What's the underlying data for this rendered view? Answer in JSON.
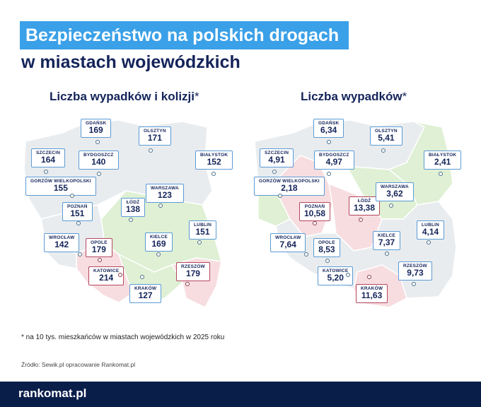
{
  "title": "Bezpieczeństwo na polskich drogach",
  "subtitle": "w miastach wojewódzkich",
  "maps": [
    {
      "title": "Liczba wypadków i kolizji",
      "star": "*",
      "cities": [
        {
          "name": "GDAŃSK",
          "value": "169",
          "highlight": false
        },
        {
          "name": "OLSZTYN",
          "value": "171",
          "highlight": false
        },
        {
          "name": "SZCZECIN",
          "value": "164",
          "highlight": false
        },
        {
          "name": "BYDGOSZCZ",
          "value": "140",
          "highlight": false
        },
        {
          "name": "BIAŁYSTOK",
          "value": "152",
          "highlight": false
        },
        {
          "name": "GORZÓW WIELKOPOLSKI",
          "value": "155",
          "highlight": false
        },
        {
          "name": "WARSZAWA",
          "value": "123",
          "highlight": false
        },
        {
          "name": "ŁÓDŹ",
          "value": "138",
          "highlight": false
        },
        {
          "name": "POZNAŃ",
          "value": "151",
          "highlight": false
        },
        {
          "name": "LUBLIN",
          "value": "151",
          "highlight": false
        },
        {
          "name": "WROCŁAW",
          "value": "142",
          "highlight": false
        },
        {
          "name": "OPOLE",
          "value": "179",
          "highlight": true
        },
        {
          "name": "KIELCE",
          "value": "169",
          "highlight": false
        },
        {
          "name": "RZESZÓW",
          "value": "179",
          "highlight": true
        },
        {
          "name": "KATOWICE",
          "value": "214",
          "highlight": true
        },
        {
          "name": "KRAKÓW",
          "value": "127",
          "highlight": false
        }
      ]
    },
    {
      "title": "Liczba wypadków",
      "star": "*",
      "cities": [
        {
          "name": "GDAŃSK",
          "value": "6,34",
          "highlight": false
        },
        {
          "name": "OLSZTYN",
          "value": "5,41",
          "highlight": false
        },
        {
          "name": "SZCZECIN",
          "value": "4,91",
          "highlight": false
        },
        {
          "name": "BYDGOSZCZ",
          "value": "4,97",
          "highlight": false
        },
        {
          "name": "BIAŁYSTOK",
          "value": "2,41",
          "highlight": false
        },
        {
          "name": "GORZÓW WIELKOPOLSKI",
          "value": "2,18",
          "highlight": false
        },
        {
          "name": "ŁÓDŹ",
          "value": "13,38",
          "highlight": true
        },
        {
          "name": "WARSZAWA",
          "value": "3,62",
          "highlight": false
        },
        {
          "name": "POZNAŃ",
          "value": "10,58",
          "highlight": true
        },
        {
          "name": "LUBLIN",
          "value": "4,14",
          "highlight": false
        },
        {
          "name": "WROCŁAW",
          "value": "7,64",
          "highlight": false
        },
        {
          "name": "KIELCE",
          "value": "7,37",
          "highlight": false
        },
        {
          "name": "OPOLE",
          "value": "8,53",
          "highlight": false
        },
        {
          "name": "RZESZÓW",
          "value": "9,73",
          "highlight": false
        },
        {
          "name": "KATOWICE",
          "value": "5,20",
          "highlight": false
        },
        {
          "name": "KRAKÓW",
          "value": "11,63",
          "highlight": true
        }
      ]
    }
  ],
  "footnote": "* na 10 tys. mieszkańców w miastach wojewódzkich w 2025 roku",
  "source": "Źródło: Sewik.pl opracowanie Rankomat.pl",
  "logo": "rankomat.pl",
  "colors": {
    "accent": "#3aa0e8",
    "navy": "#0a1e4a",
    "green": "#dff0d4",
    "red": "#f7dde0",
    "gray": "#e9ecef"
  }
}
